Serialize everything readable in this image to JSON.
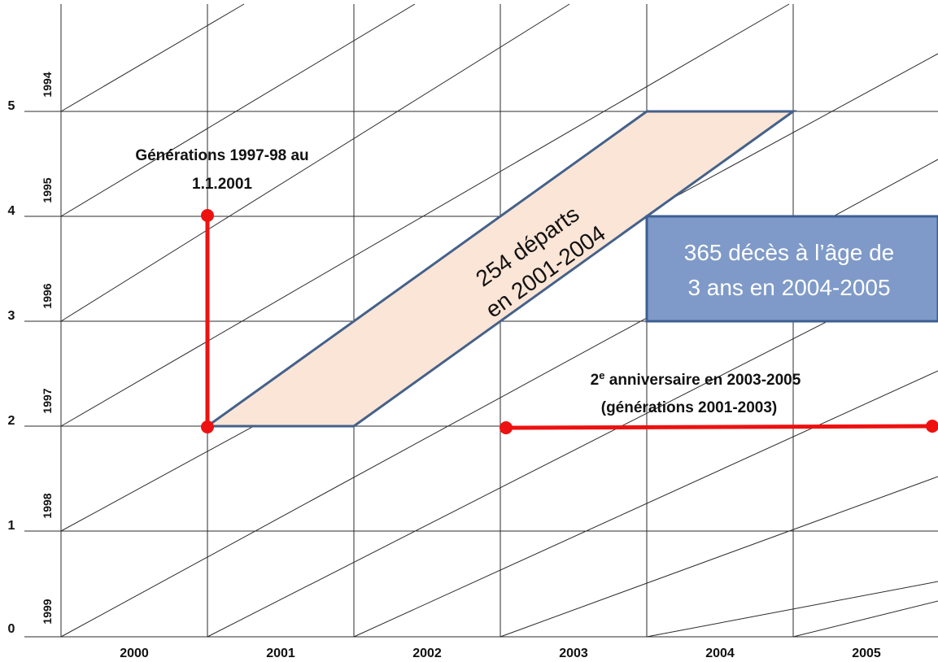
{
  "diagram": {
    "x_labels": [
      "2000",
      "2001",
      "2002",
      "2003",
      "2004",
      "2005"
    ],
    "y_labels": [
      "0",
      "1",
      "2",
      "3",
      "4",
      "5"
    ],
    "generation_labels": [
      "1999",
      "1998",
      "1997",
      "1996",
      "1995",
      "1994"
    ],
    "annotations": {
      "generations_line1": "Générations 1997-98 au",
      "generations_line2": "1.1.2001",
      "departures_line1": "254 départs",
      "departures_line2": "en 2001-2004",
      "deaths_line1": "365 décès à l’âge de",
      "deaths_line2": "3 ans en 2004-2005",
      "anniversary_prefix": "2",
      "anniversary_sup": "e",
      "anniversary_rest": " anniversaire en 2003-2005",
      "anniversary_line2": "(générations 2001-2003)"
    },
    "colors": {
      "grid": "#2b2b2b",
      "parallelogram_fill": "#fbe5d6",
      "parallelogram_stroke": "#44618a",
      "box_fill": "#7f9ac8",
      "box_stroke": "#3d5f93",
      "red": "#ee1111"
    }
  }
}
